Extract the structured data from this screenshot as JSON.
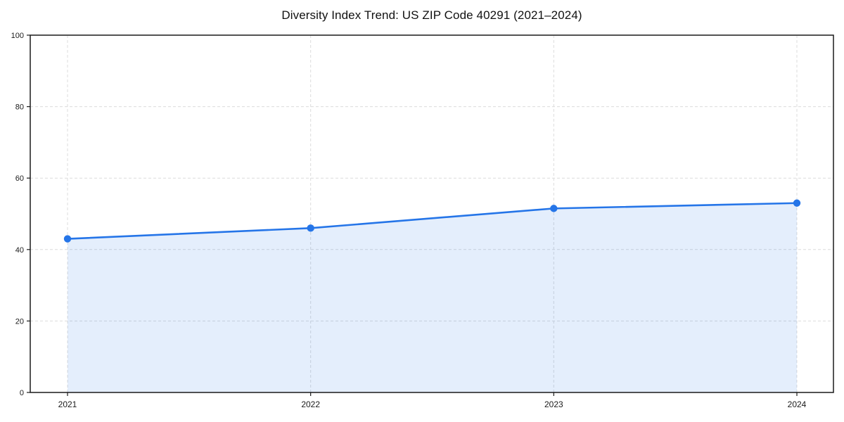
{
  "chart_data": {
    "type": "area",
    "title": "Diversity Index Trend: US ZIP Code 40291 (2021–2024)",
    "categories": [
      "2021",
      "2022",
      "2023",
      "2024"
    ],
    "values": [
      43,
      46,
      51.5,
      53
    ],
    "xlabel": "",
    "ylabel": "",
    "ylim": [
      0,
      100
    ],
    "yticks": [
      0,
      20,
      40,
      60,
      80,
      100
    ],
    "grid": true,
    "grid_style": "dashed",
    "legend": "none",
    "colors": {
      "line": "#2575e8",
      "marker": "#2575e8",
      "fill": "#2575e8",
      "fill_opacity": 0.12,
      "grid": "#dcdcdc",
      "spine": "#1a1a1a",
      "tick_label": "#1a1a1a"
    }
  }
}
